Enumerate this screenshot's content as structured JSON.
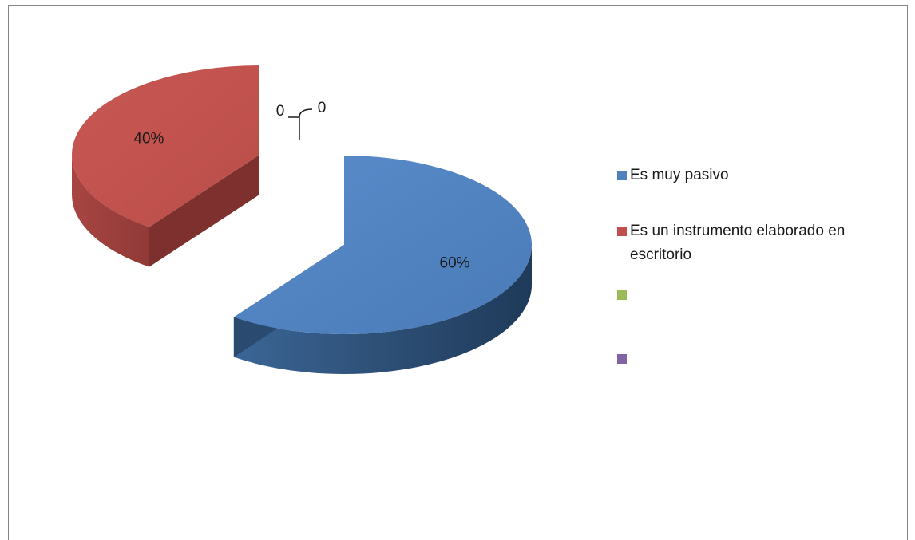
{
  "chart_data": {
    "type": "pie",
    "title": "",
    "slices": [
      {
        "name": "Es muy pasivo",
        "value": 60,
        "label": "60%",
        "color": "#4f81bd"
      },
      {
        "name": "Es un instrumento elaborado en escritorio",
        "value": 40,
        "label": "40%",
        "color": "#c0504d"
      },
      {
        "name": "",
        "value": 0,
        "label": "0",
        "color": "#9bbb59"
      },
      {
        "name": "",
        "value": 0,
        "label": "0",
        "color": "#8064a2"
      }
    ],
    "legend_position": "right",
    "style": "3d-exploded"
  }
}
